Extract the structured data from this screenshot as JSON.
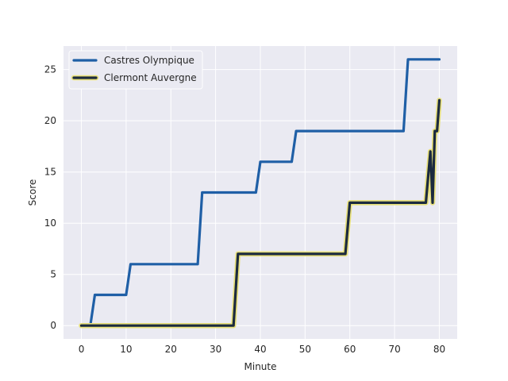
{
  "chart_data": {
    "type": "line",
    "xlabel": "Minute",
    "ylabel": "Score",
    "xlim": [
      -4,
      84
    ],
    "ylim": [
      -1.3,
      27.3
    ],
    "xticks": [
      0,
      10,
      20,
      30,
      40,
      50,
      60,
      70,
      80
    ],
    "yticks": [
      0,
      5,
      10,
      15,
      20,
      25
    ],
    "grid": true,
    "legend_position": "top-left",
    "background": "#eaeaf2",
    "series": [
      {
        "name": "Castres Olympique",
        "color": "#1f5fa6",
        "x": [
          0,
          2,
          3,
          10,
          11,
          26,
          27,
          39,
          40,
          47,
          48,
          72,
          73,
          80
        ],
        "y": [
          0,
          0,
          3,
          3,
          6,
          6,
          13,
          13,
          16,
          16,
          19,
          19,
          26,
          26
        ]
      },
      {
        "name": "Clermont Auvergne",
        "color": "#1b2a3f",
        "outline": "#e8e07a",
        "x": [
          0,
          34,
          35,
          59,
          60,
          77,
          78,
          78.5,
          79,
          79.5,
          80
        ],
        "y": [
          0,
          0,
          7,
          7,
          12,
          12,
          17,
          12,
          19,
          19,
          22
        ]
      }
    ]
  }
}
